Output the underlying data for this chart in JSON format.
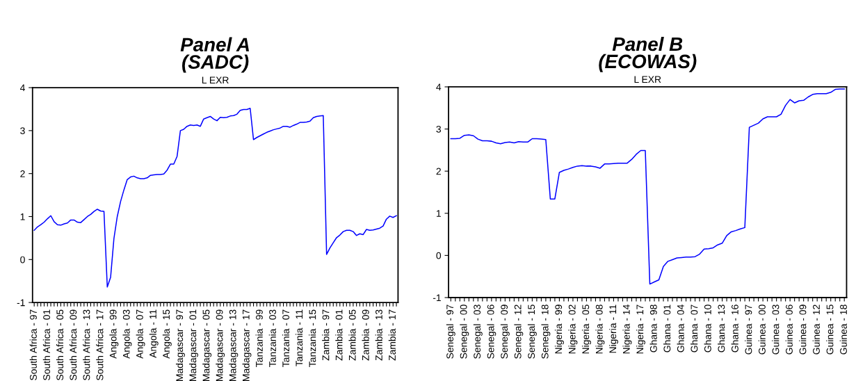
{
  "chart_data": [
    {
      "type": "line",
      "title": "Panel A\n(SADC)",
      "subtitle": "L EXR",
      "categories": [
        "South Africa - 97",
        null,
        null,
        null,
        "South Africa - 01",
        null,
        null,
        null,
        "South Africa - 05",
        null,
        null,
        null,
        "South Africa - 09",
        null,
        null,
        null,
        "South Africa - 13",
        null,
        null,
        null,
        "South Africa - 17",
        null,
        null,
        null,
        "Angola - 99",
        null,
        null,
        null,
        "Angola - 03",
        null,
        null,
        null,
        "Angola - 07",
        null,
        null,
        null,
        "Angola - 11",
        null,
        null,
        null,
        "Angola - 15",
        null,
        null,
        null,
        "Madagascar - 97",
        null,
        null,
        null,
        "Madagascar - 01",
        null,
        null,
        null,
        "Madagascar - 05",
        null,
        null,
        null,
        "Madagascar - 09",
        null,
        null,
        null,
        "Madagascar - 13",
        null,
        null,
        null,
        "Madagascar - 17",
        null,
        null,
        null,
        "Tanzania - 99",
        null,
        null,
        null,
        "Tanzania - 03",
        null,
        null,
        null,
        "Tanzania - 07",
        null,
        null,
        null,
        "Tanzania - 11",
        null,
        null,
        null,
        "Tanzania - 15",
        null,
        null,
        null,
        "Zambia - 97",
        null,
        null,
        null,
        "Zambia - 01",
        null,
        null,
        null,
        "Zambia - 05",
        null,
        null,
        null,
        "Zambia - 09",
        null,
        null,
        null,
        "Zambia - 13",
        null,
        null,
        null,
        "Zambia - 17",
        null
      ],
      "series": [
        {
          "color": "#0000ff",
          "values": [
            0.68,
            0.76,
            0.81,
            0.87,
            0.95,
            1.02,
            0.88,
            0.81,
            0.8,
            0.83,
            0.85,
            0.92,
            0.92,
            0.87,
            0.86,
            0.93,
            1.0,
            1.05,
            1.12,
            1.17,
            1.13,
            1.12,
            -0.64,
            -0.41,
            0.49,
            1.0,
            1.35,
            1.62,
            1.86,
            1.92,
            1.94,
            1.9,
            1.88,
            1.88,
            1.9,
            1.96,
            1.97,
            1.98,
            1.98,
            1.99,
            2.08,
            2.22,
            2.22,
            2.4,
            3.0,
            3.03,
            3.1,
            3.13,
            3.12,
            3.13,
            3.1,
            3.27,
            3.3,
            3.33,
            3.27,
            3.23,
            3.31,
            3.3,
            3.31,
            3.34,
            3.35,
            3.38,
            3.47,
            3.49,
            3.49,
            3.52,
            2.79,
            2.84,
            2.88,
            2.92,
            2.96,
            2.99,
            3.02,
            3.04,
            3.06,
            3.1,
            3.1,
            3.08,
            3.12,
            3.15,
            3.19,
            3.19,
            3.2,
            3.22,
            3.3,
            3.33,
            3.34,
            3.35,
            0.12,
            0.27,
            0.39,
            0.51,
            0.57,
            0.65,
            0.68,
            0.68,
            0.65,
            0.56,
            0.6,
            0.58,
            0.7,
            0.68,
            0.69,
            0.71,
            0.73,
            0.78,
            0.94,
            1.01,
            0.98,
            1.02
          ]
        }
      ],
      "ylim": [
        -1,
        4
      ],
      "yticks": [
        -1,
        0,
        1,
        2,
        3,
        4
      ],
      "grid": false,
      "marker": "none",
      "line_style": "solid"
    },
    {
      "type": "line",
      "title": "Panel B\n(ECOWAS)",
      "subtitle": "L EXR",
      "categories": [
        "Senegal - 97",
        null,
        null,
        "Senegal - 00",
        null,
        null,
        "Senegal - 03",
        null,
        null,
        "Senegal - 06",
        null,
        null,
        "Senegal - 09",
        null,
        null,
        "Senegal - 12",
        null,
        null,
        "Senegal - 15",
        null,
        null,
        "Senegal - 18",
        null,
        null,
        "Nigeria - 99",
        null,
        null,
        "Nigeria - 02",
        null,
        null,
        "Nigeria - 05",
        null,
        null,
        "Nigeria - 08",
        null,
        null,
        "Nigeria - 11",
        null,
        null,
        "Nigeria - 14",
        null,
        null,
        "Nigeria - 17",
        null,
        null,
        "Ghana - 98",
        null,
        null,
        "Ghana - 01",
        null,
        null,
        "Ghana - 04",
        null,
        null,
        "Ghana - 07",
        null,
        null,
        "Ghana - 10",
        null,
        null,
        "Ghana - 13",
        null,
        null,
        "Ghana - 16",
        null,
        null,
        "Guinea - 97",
        null,
        null,
        "Guinea - 00",
        null,
        null,
        "Guinea - 03",
        null,
        null,
        "Guinea - 06",
        null,
        null,
        "Guinea - 09",
        null,
        null,
        "Guinea - 12",
        null,
        null,
        "Guinea - 15",
        null,
        null,
        "Guinea - 18"
      ],
      "series": [
        {
          "color": "#0000ff",
          "values": [
            2.77,
            2.77,
            2.78,
            2.85,
            2.86,
            2.84,
            2.76,
            2.72,
            2.72,
            2.71,
            2.67,
            2.65,
            2.68,
            2.69,
            2.67,
            2.7,
            2.69,
            2.69,
            2.77,
            2.77,
            2.76,
            2.75,
            1.34,
            1.34,
            1.97,
            2.02,
            2.05,
            2.09,
            2.12,
            2.13,
            2.12,
            2.12,
            2.1,
            2.07,
            2.17,
            2.17,
            2.18,
            2.19,
            2.19,
            2.19,
            2.28,
            2.4,
            2.49,
            2.49,
            -0.68,
            -0.63,
            -0.58,
            -0.26,
            -0.14,
            -0.1,
            -0.06,
            -0.05,
            -0.04,
            -0.04,
            -0.03,
            0.03,
            0.15,
            0.16,
            0.18,
            0.25,
            0.29,
            0.47,
            0.56,
            0.59,
            0.63,
            0.66,
            3.04,
            3.09,
            3.14,
            3.24,
            3.29,
            3.29,
            3.29,
            3.35,
            3.56,
            3.7,
            3.62,
            3.67,
            3.68,
            3.76,
            3.82,
            3.84,
            3.84,
            3.84,
            3.87,
            3.94,
            3.95,
            3.95
          ]
        }
      ],
      "ylim": [
        -1,
        4
      ],
      "yticks": [
        -1,
        0,
        1,
        2,
        3,
        4
      ],
      "grid": false,
      "marker": "none",
      "line_style": "solid"
    }
  ]
}
